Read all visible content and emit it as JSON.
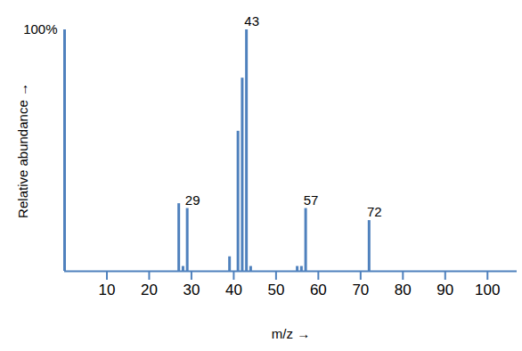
{
  "chart_data": {
    "type": "bar",
    "x_label": "m/z",
    "y_label": "Relative abundance",
    "x": [
      27,
      28,
      29,
      39,
      41,
      42,
      43,
      44,
      55,
      56,
      57,
      72
    ],
    "values": [
      28,
      2,
      26,
      6,
      58,
      80,
      100,
      2,
      2,
      2,
      26,
      21
    ],
    "color": "#4f81bd",
    "xlim": [
      0,
      107
    ],
    "xticks": [
      10,
      20,
      30,
      40,
      50,
      60,
      70,
      80,
      90,
      100
    ],
    "ylim": [
      0,
      100
    ],
    "yticks": [
      {
        "value": 100,
        "label": "100%"
      }
    ],
    "annotations": [
      {
        "x": 43,
        "label": "43"
      },
      {
        "x": 29,
        "label": "29"
      },
      {
        "x": 57,
        "label": "57"
      },
      {
        "x": 72,
        "label": "72"
      }
    ]
  }
}
